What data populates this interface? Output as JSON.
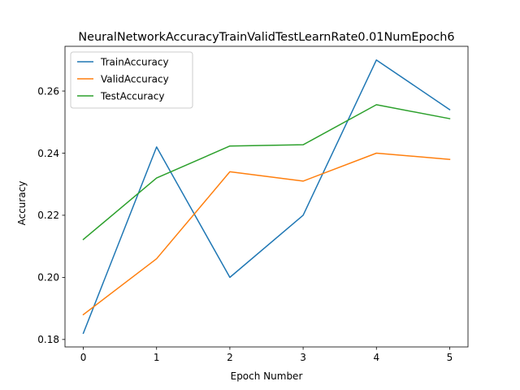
{
  "chart_data": {
    "type": "line",
    "title": "NeuralNetworkAccuracyTrainValidTestLearnRate0.01NumEpoch6",
    "xlabel": "Epoch Number",
    "ylabel": "Accuracy",
    "x": [
      0,
      1,
      2,
      3,
      4,
      5
    ],
    "xticks": [
      "0",
      "1",
      "2",
      "3",
      "4",
      "5"
    ],
    "yticks": [
      "0.18",
      "0.20",
      "0.22",
      "0.24",
      "0.26"
    ],
    "ytick_values": [
      0.18,
      0.2,
      0.22,
      0.24,
      0.26
    ],
    "xlim": [
      -0.25,
      5.25
    ],
    "ylim": [
      0.1776,
      0.2744
    ],
    "grid": false,
    "legend_position": "upper left",
    "series": [
      {
        "name": "TrainAccuracy",
        "color": "#1f77b4",
        "values": [
          0.182,
          0.242,
          0.2,
          0.22,
          0.27,
          0.254
        ]
      },
      {
        "name": "ValidAccuracy",
        "color": "#ff7f0e",
        "values": [
          0.188,
          0.206,
          0.234,
          0.231,
          0.24,
          0.238
        ]
      },
      {
        "name": "TestAccuracy",
        "color": "#2ca02c",
        "values": [
          0.2122,
          0.232,
          0.2423,
          0.2427,
          0.2556,
          0.2511
        ]
      }
    ]
  }
}
